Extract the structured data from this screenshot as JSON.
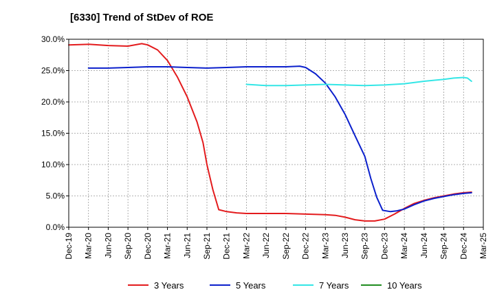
{
  "chart_data": {
    "type": "line",
    "title": "[6330]  Trend of StDev of ROE",
    "xlabel": "",
    "ylabel": "",
    "x_ticks": [
      "Dec-19",
      "Mar-20",
      "Jun-20",
      "Sep-20",
      "Dec-20",
      "Mar-21",
      "Jun-21",
      "Sep-21",
      "Dec-21",
      "Mar-22",
      "Jun-22",
      "Sep-22",
      "Dec-22",
      "Mar-23",
      "Jun-23",
      "Sep-23",
      "Dec-23",
      "Mar-24",
      "Jun-24",
      "Sep-24",
      "Dec-24",
      "Mar-25"
    ],
    "y_ticks": [
      "0.0%",
      "5.0%",
      "10.0%",
      "15.0%",
      "20.0%",
      "25.0%",
      "30.0%"
    ],
    "ylim": [
      0,
      30
    ],
    "grid": true,
    "legend_position": "bottom",
    "series": [
      {
        "name": "3 Years",
        "color": "#e31a1c",
        "points": [
          [
            0,
            29.1
          ],
          [
            1,
            29.2
          ],
          [
            2,
            29.0
          ],
          [
            3,
            28.9
          ],
          [
            3.7,
            29.3
          ],
          [
            4,
            29.1
          ],
          [
            4.5,
            28.3
          ],
          [
            5,
            26.6
          ],
          [
            5.5,
            24.0
          ],
          [
            6,
            20.8
          ],
          [
            6.5,
            16.8
          ],
          [
            6.8,
            13.5
          ],
          [
            7,
            10.0
          ],
          [
            7.3,
            6.0
          ],
          [
            7.6,
            2.8
          ],
          [
            8,
            2.5
          ],
          [
            8.5,
            2.3
          ],
          [
            9,
            2.2
          ],
          [
            10,
            2.2
          ],
          [
            11,
            2.2
          ],
          [
            12,
            2.1
          ],
          [
            13,
            2.0
          ],
          [
            13.5,
            1.9
          ],
          [
            14,
            1.6
          ],
          [
            14.5,
            1.2
          ],
          [
            15,
            1.0
          ],
          [
            15.5,
            1.0
          ],
          [
            16,
            1.3
          ],
          [
            16.5,
            2.1
          ],
          [
            17,
            3.0
          ],
          [
            17.5,
            3.8
          ],
          [
            18,
            4.3
          ],
          [
            18.5,
            4.7
          ],
          [
            19,
            5.0
          ],
          [
            19.5,
            5.3
          ],
          [
            20,
            5.5
          ],
          [
            20.4,
            5.6
          ]
        ]
      },
      {
        "name": "5 Years",
        "color": "#0a1fcc",
        "points": [
          [
            1,
            25.4
          ],
          [
            2,
            25.4
          ],
          [
            3,
            25.5
          ],
          [
            4,
            25.6
          ],
          [
            5,
            25.6
          ],
          [
            6,
            25.5
          ],
          [
            7,
            25.4
          ],
          [
            8,
            25.5
          ],
          [
            9,
            25.6
          ],
          [
            10,
            25.6
          ],
          [
            11,
            25.6
          ],
          [
            11.7,
            25.7
          ],
          [
            12,
            25.5
          ],
          [
            12.5,
            24.5
          ],
          [
            13,
            23.0
          ],
          [
            13.5,
            20.8
          ],
          [
            14,
            18.0
          ],
          [
            14.5,
            14.6
          ],
          [
            15,
            11.3
          ],
          [
            15.3,
            7.8
          ],
          [
            15.6,
            4.8
          ],
          [
            15.9,
            2.7
          ],
          [
            16.3,
            2.5
          ],
          [
            16.6,
            2.6
          ],
          [
            17,
            2.9
          ],
          [
            17.5,
            3.6
          ],
          [
            18,
            4.2
          ],
          [
            18.5,
            4.6
          ],
          [
            19,
            4.9
          ],
          [
            19.5,
            5.2
          ],
          [
            20,
            5.4
          ],
          [
            20.4,
            5.5
          ]
        ]
      },
      {
        "name": "7 Years",
        "color": "#33e6e6",
        "points": [
          [
            9,
            22.8
          ],
          [
            9.5,
            22.7
          ],
          [
            10,
            22.6
          ],
          [
            11,
            22.6
          ],
          [
            12,
            22.7
          ],
          [
            13,
            22.8
          ],
          [
            14,
            22.7
          ],
          [
            15,
            22.6
          ],
          [
            16,
            22.7
          ],
          [
            17,
            22.9
          ],
          [
            18,
            23.3
          ],
          [
            19,
            23.6
          ],
          [
            19.5,
            23.8
          ],
          [
            20,
            23.9
          ],
          [
            20.2,
            23.8
          ],
          [
            20.4,
            23.3
          ]
        ]
      },
      {
        "name": "10 Years",
        "color": "#1f8c1f",
        "points": []
      }
    ]
  }
}
